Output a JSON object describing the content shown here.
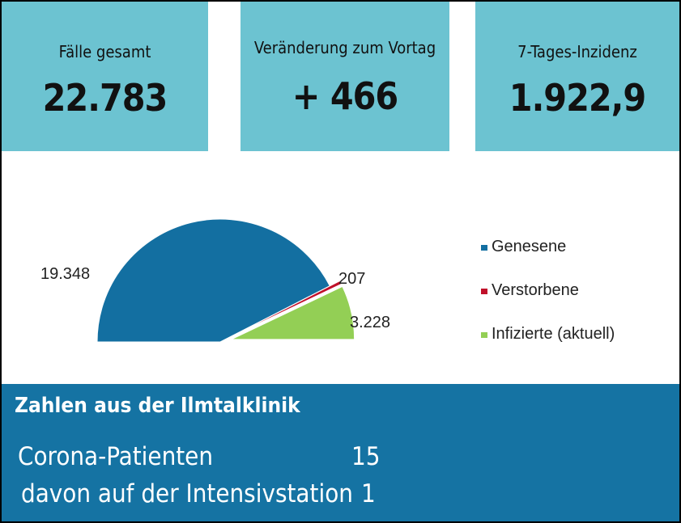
{
  "tiles": [
    {
      "label": "Fälle gesamt",
      "value": "22.783"
    },
    {
      "label": "Veränderung zum Vortag",
      "value": "+ 466"
    },
    {
      "label": "7-Tages-Inzidenz",
      "value": "1.922,9"
    }
  ],
  "chart_data": {
    "type": "pie",
    "categories": [
      "Genesene",
      "Verstorbene",
      "Infizierte (aktuell)"
    ],
    "values": [
      19348,
      207,
      3228
    ],
    "data_labels": [
      "19.348",
      "207",
      "3.228"
    ],
    "colors": [
      "#136fa1",
      "#c0102a",
      "#93cf55"
    ],
    "legend_position": "right",
    "half_pie": true
  },
  "clinic": {
    "title": "Zahlen aus der Ilmtalklinik",
    "rows": [
      {
        "label": "Corona-Patienten",
        "value": "15"
      },
      {
        "label": "davon auf der Intensivstation",
        "value": "1"
      }
    ]
  }
}
